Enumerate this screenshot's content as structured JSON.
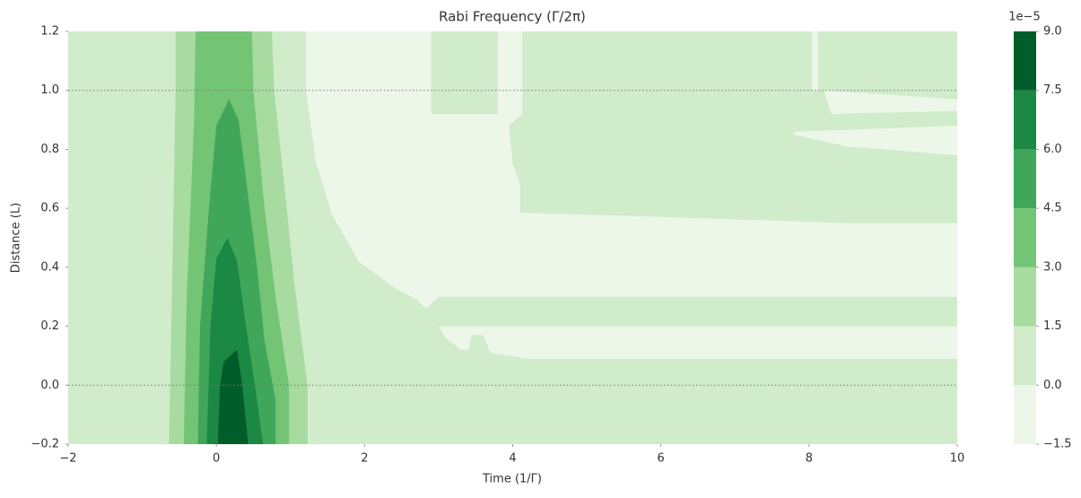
{
  "chart_data": {
    "type": "contour",
    "title": "Rabi Frequency (Γ/2π)",
    "xlabel": "Time (1/Γ)",
    "ylabel": "Distance (L)",
    "xlim": [
      -2,
      10
    ],
    "ylim": [
      -0.2,
      1.2
    ],
    "xticks": [
      {
        "value": -2,
        "label": "−2"
      },
      0,
      2,
      4,
      6,
      8,
      10
    ],
    "yticks": [
      {
        "value": -0.2,
        "label": "−0.2"
      },
      {
        "value": 0,
        "label": "0.0"
      },
      0.2,
      0.4,
      0.6,
      0.8,
      {
        "value": 1,
        "label": "1.0"
      },
      1.2
    ],
    "hlines": [
      0,
      1
    ],
    "colorbar": {
      "offset_label": "1e−5",
      "levels": [
        {
          "value": -1.5,
          "label": "−1.5"
        },
        {
          "value": 0,
          "label": "0.0"
        },
        1.5,
        {
          "value": 3,
          "label": "3.0"
        },
        4.5,
        {
          "value": 6,
          "label": "6.0"
        },
        7.5,
        {
          "value": 9,
          "label": "9.0"
        }
      ],
      "colors": [
        "#edf7e9",
        "#d0ecca",
        "#a7db9f",
        "#74c476",
        "#40a65a",
        "#1b8843",
        "#005d29"
      ]
    },
    "regions": [
      {
        "range": [
          0,
          1.5
        ],
        "points": [
          [
            -2,
            -0.2
          ],
          [
            10,
            -0.2
          ],
          [
            10,
            1.2
          ],
          [
            -2,
            1.2
          ]
        ]
      },
      {
        "range": [
          -1.5,
          0
        ],
        "points": [
          [
            1.21,
            1.2
          ],
          [
            2.9,
            1.2
          ],
          [
            2.9,
            0.92
          ],
          [
            3.8,
            0.92
          ],
          [
            3.8,
            1.2
          ],
          [
            4.13,
            1.2
          ],
          [
            4.13,
            0.92
          ],
          [
            3.95,
            0.88
          ],
          [
            4.0,
            0.75
          ],
          [
            4.1,
            0.68
          ],
          [
            4.1,
            0.585
          ],
          [
            6.1,
            0.57
          ],
          [
            8.5,
            0.55
          ],
          [
            10,
            0.55
          ],
          [
            10,
            0.3
          ],
          [
            3.0,
            0.3
          ],
          [
            2.83,
            0.26
          ],
          [
            2.71,
            0.29
          ],
          [
            2.41,
            0.33
          ],
          [
            1.92,
            0.42
          ],
          [
            1.56,
            0.58
          ],
          [
            1.34,
            0.76
          ],
          [
            1.26,
            0.91
          ],
          [
            1.21,
            1.0
          ]
        ]
      },
      {
        "range": [
          -1.5,
          0
        ],
        "points": [
          [
            7.8,
            0.86
          ],
          [
            10,
            0.88
          ],
          [
            10,
            0.78
          ],
          [
            9.5,
            0.79
          ],
          [
            8.5,
            0.81
          ],
          [
            7.8,
            0.85
          ]
        ]
      },
      {
        "range": [
          -1.5,
          0
        ],
        "points": [
          [
            3.0,
            0.2
          ],
          [
            10,
            0.2
          ],
          [
            10,
            0.09
          ],
          [
            4.2,
            0.09
          ],
          [
            3.7,
            0.11
          ],
          [
            3.6,
            0.17
          ],
          [
            3.45,
            0.17
          ],
          [
            3.4,
            0.12
          ],
          [
            3.3,
            0.12
          ],
          [
            3.1,
            0.16
          ]
        ]
      },
      {
        "range": [
          -1.5,
          0
        ],
        "points": [
          [
            8.04,
            1.2
          ],
          [
            8.12,
            1.2
          ],
          [
            8.12,
            1.0
          ],
          [
            8.04,
            1.0
          ]
        ]
      },
      {
        "range": [
          -1.5,
          0
        ],
        "points": [
          [
            8.2,
            1.0
          ],
          [
            10,
            0.97
          ],
          [
            10,
            0.93
          ],
          [
            8.3,
            0.92
          ]
        ]
      },
      {
        "range": [
          1.5,
          3
        ],
        "points": [
          [
            -0.55,
            1.2
          ],
          [
            0.75,
            1.2
          ],
          [
            0.78,
            1.0
          ],
          [
            0.95,
            0.6
          ],
          [
            1.05,
            0.35
          ],
          [
            1.23,
            0.0
          ],
          [
            1.23,
            -0.2
          ],
          [
            -0.64,
            -0.2
          ],
          [
            -0.6,
            0.3
          ],
          [
            -0.55,
            1.0
          ]
        ]
      },
      {
        "range": [
          3,
          4.5
        ],
        "points": [
          [
            -0.28,
            1.2
          ],
          [
            0.48,
            1.2
          ],
          [
            0.5,
            1.0
          ],
          [
            0.65,
            0.6
          ],
          [
            0.8,
            0.3
          ],
          [
            0.98,
            0.0
          ],
          [
            0.98,
            -0.2
          ],
          [
            -0.44,
            -0.2
          ],
          [
            -0.4,
            0.3
          ],
          [
            -0.3,
            0.9
          ]
        ]
      },
      {
        "range": [
          4.5,
          6
        ],
        "points": [
          [
            0.0,
            0.88
          ],
          [
            0.17,
            0.97
          ],
          [
            0.3,
            0.9
          ],
          [
            0.4,
            0.7
          ],
          [
            0.55,
            0.4
          ],
          [
            0.65,
            0.15
          ],
          [
            0.8,
            -0.05
          ],
          [
            0.8,
            -0.2
          ],
          [
            -0.25,
            -0.2
          ],
          [
            -0.22,
            0.2
          ],
          [
            -0.1,
            0.6
          ]
        ]
      },
      {
        "range": [
          6,
          7.5
        ],
        "points": [
          [
            0.0,
            0.43
          ],
          [
            0.15,
            0.5
          ],
          [
            0.28,
            0.42
          ],
          [
            0.4,
            0.2
          ],
          [
            0.52,
            0.0
          ],
          [
            0.63,
            -0.2
          ],
          [
            -0.13,
            -0.2
          ],
          [
            -0.08,
            0.2
          ]
        ]
      },
      {
        "range": [
          7.5,
          9
        ],
        "points": [
          [
            0.1,
            0.08
          ],
          [
            0.28,
            0.12
          ],
          [
            0.35,
            0.0
          ],
          [
            0.43,
            -0.2
          ],
          [
            0.02,
            -0.2
          ],
          [
            0.05,
            0.0
          ]
        ]
      }
    ]
  }
}
